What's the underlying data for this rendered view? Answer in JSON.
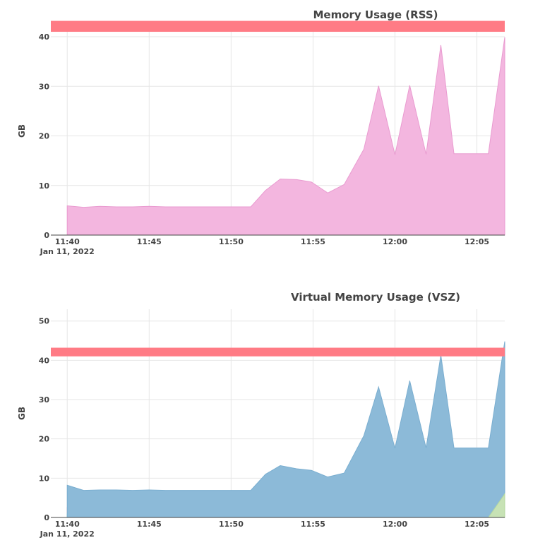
{
  "chart_data": [
    {
      "type": "area",
      "title": "Memory Usage (RSS)",
      "xlabel": "",
      "ylabel": "GB",
      "x_tick_labels": [
        "11:40",
        "11:45",
        "11:50",
        "11:55",
        "12:00",
        "12:05"
      ],
      "x_tick_minutes": [
        0,
        5,
        10,
        15,
        20,
        25
      ],
      "x_date_label": "Jan 11, 2022",
      "xlim_minutes": [
        -1,
        26.7
      ],
      "ylim": [
        0,
        42
      ],
      "y_ticks": [
        0,
        10,
        20,
        30,
        40
      ],
      "grid": true,
      "threshold": {
        "value": 42,
        "band_low": 41,
        "band_high": 43.2,
        "color": "#ff7b85"
      },
      "series": [
        {
          "color": "#f3b6df",
          "stroke": "#e99bd0",
          "x_minutes": [
            0,
            1,
            2,
            3,
            4,
            5,
            6,
            7,
            8,
            9,
            10,
            11,
            11.2,
            12.1,
            13,
            14,
            14.9,
            15.9,
            16.9,
            18.1,
            19,
            20,
            20.9,
            21.9,
            22.8,
            23.6,
            24.6,
            25.7,
            26.7
          ],
          "values": [
            5.9,
            5.6,
            5.8,
            5.7,
            5.7,
            5.8,
            5.7,
            5.7,
            5.7,
            5.7,
            5.7,
            5.7,
            5.7,
            9,
            11.3,
            11.2,
            10.7,
            8.5,
            10.2,
            17.3,
            30.1,
            16.2,
            30.2,
            16.3,
            38.3,
            16.4,
            16.4,
            16.4,
            39.9
          ]
        }
      ]
    },
    {
      "type": "area",
      "title": "Virtual Memory Usage (VSZ)",
      "xlabel": "",
      "ylabel": "GB",
      "x_tick_labels": [
        "11:40",
        "11:45",
        "11:50",
        "11:55",
        "12:00",
        "12:05"
      ],
      "x_tick_minutes": [
        0,
        5,
        10,
        15,
        20,
        25
      ],
      "x_date_label": "Jan 11, 2022",
      "xlim_minutes": [
        -1,
        26.7
      ],
      "ylim": [
        0,
        53
      ],
      "y_ticks": [
        0,
        10,
        20,
        30,
        40,
        50
      ],
      "grid": true,
      "threshold": {
        "value": 42,
        "band_low": 41,
        "band_high": 43.2,
        "color": "#ff7b85"
      },
      "series": [
        {
          "color": "#e98a9e",
          "stroke": "#e98a9e",
          "x_minutes": [
            0,
            1,
            2,
            5,
            10,
            15,
            20,
            25,
            26,
            26.7
          ],
          "values": [
            2.5,
            0.5,
            0.5,
            0.5,
            0.5,
            0.5,
            0.5,
            0.5,
            0.5,
            0.5
          ]
        },
        {
          "color": "#a8d4a0",
          "stroke": "#a8d4a0",
          "x_minutes": [
            0,
            1,
            2,
            5,
            10,
            15,
            20,
            25,
            26,
            26.7
          ],
          "values": [
            0.8,
            0.5,
            0.5,
            0.5,
            0.5,
            0.5,
            0.5,
            0.5,
            0.5,
            0.5
          ]
        },
        {
          "color": "#7fe0e2",
          "stroke": "#6fd8da",
          "x_minutes": [
            0,
            1,
            2,
            5,
            10,
            15,
            20,
            25,
            26,
            26.7
          ],
          "values": [
            1.0,
            0.7,
            0.7,
            0.7,
            0.7,
            0.7,
            0.7,
            0.7,
            0.7,
            0.7
          ]
        },
        {
          "color": "#8cbad8",
          "stroke": "#7aaed0",
          "x_minutes": [
            0,
            1,
            2,
            3,
            4,
            5,
            6,
            7,
            8,
            9,
            10,
            11,
            11.2,
            12.1,
            13,
            14,
            14.9,
            15.9,
            16.9,
            18.1,
            19,
            20,
            20.9,
            21.9,
            22.8,
            23.6,
            24.6,
            25.7,
            26.7
          ],
          "values": [
            8.2,
            6.9,
            7.0,
            7.0,
            6.9,
            7.0,
            6.9,
            6.9,
            6.9,
            6.9,
            6.9,
            6.9,
            6.9,
            11.0,
            13.2,
            12.4,
            12.0,
            10.3,
            11.3,
            20.8,
            33.2,
            17.6,
            34.8,
            17.7,
            41.3,
            17.7,
            17.7,
            17.7,
            44.8
          ]
        },
        {
          "color": "#c7e2b5",
          "stroke": "#b6d8a0",
          "x_minutes": [
            0,
            5,
            10,
            15,
            20,
            25,
            25.7,
            26.7
          ],
          "values": [
            0,
            0,
            0,
            0,
            0,
            0,
            0,
            6.0
          ]
        }
      ]
    }
  ]
}
